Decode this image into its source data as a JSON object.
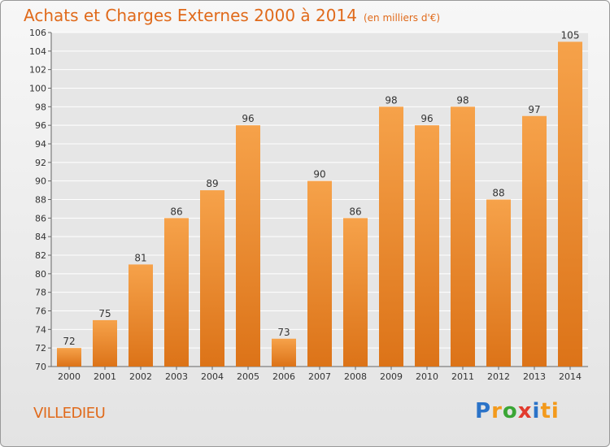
{
  "header": {
    "title": "Achats et Charges Externes 2000 à 2014",
    "unit": "(en milliers d'€)"
  },
  "footer": {
    "city": "VILLEDIEU",
    "logo_letters": [
      "P",
      "r",
      "o",
      "x",
      "i",
      "ti"
    ]
  },
  "colors": {
    "title": "#e06a1b",
    "bar_top": "#f6a24a",
    "bar_bottom": "#dc7318",
    "gridline": "#ffffff"
  },
  "chart_data": {
    "type": "bar",
    "title": "Achats et Charges Externes 2000 à 2014",
    "subtitle": "(en milliers d'€)",
    "categories": [
      "2000",
      "2001",
      "2002",
      "2003",
      "2004",
      "2005",
      "2006",
      "2007",
      "2008",
      "2009",
      "2010",
      "2011",
      "2012",
      "2013",
      "2014"
    ],
    "values": [
      72,
      75,
      81,
      86,
      89,
      96,
      73,
      90,
      86,
      98,
      96,
      98,
      88,
      97,
      105
    ],
    "ylim": [
      70,
      106
    ],
    "yticks": [
      70,
      72,
      74,
      76,
      78,
      80,
      82,
      84,
      86,
      88,
      90,
      92,
      94,
      96,
      98,
      100,
      102,
      104,
      106
    ],
    "grid": true,
    "legend": "none"
  }
}
